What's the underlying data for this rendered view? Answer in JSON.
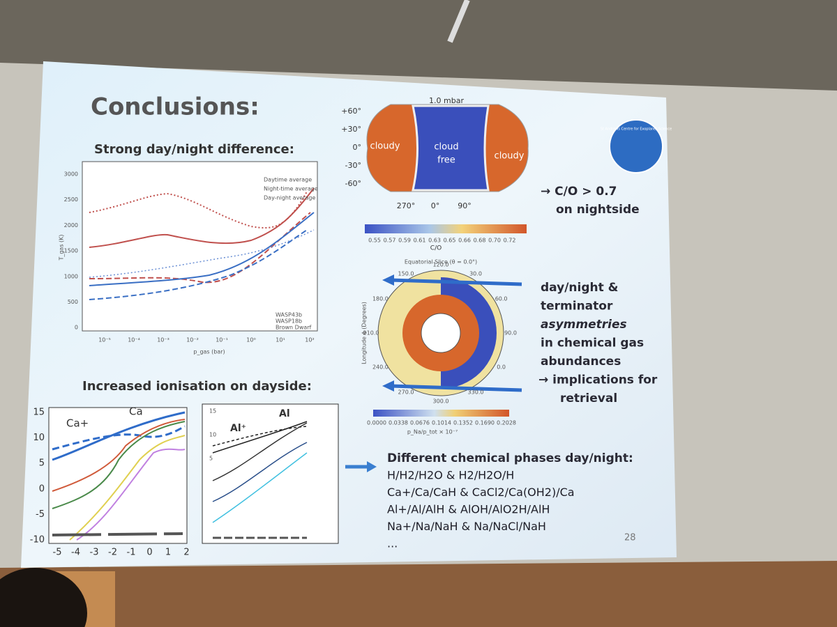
{
  "slide": {
    "title": "Conclusions:",
    "page_number": "28",
    "panel_1": {
      "heading": "Strong day/night difference:",
      "y_label": "T_gas (K)",
      "x_label": "p_gas (bar)",
      "yticks": [
        "3000",
        "2500",
        "2000",
        "1500",
        "1000",
        "500",
        "0"
      ],
      "xticks": [
        "10⁻⁵",
        "10⁻⁴",
        "10⁻³",
        "10⁻²",
        "10⁻¹",
        "10⁰",
        "10¹",
        "10²"
      ],
      "legend_top": [
        "Daytime average",
        "Night-time average",
        "Day-night average"
      ],
      "legend_bottom": [
        "WASP43b",
        "WASP18b",
        "Brown Dwarf"
      ]
    },
    "map": {
      "pressure": "1.0 mbar",
      "lat_labels": [
        "+60°",
        "+30°",
        "0°",
        "-30°",
        "-60°"
      ],
      "lon_labels": [
        "270°",
        "0°",
        "90°"
      ],
      "regions": [
        "cloudy",
        "cloud",
        "free",
        "cloudy"
      ],
      "colorbar_ticks": [
        "0.55",
        "0.57",
        "0.59",
        "0.61",
        "0.63",
        "0.65",
        "0.66",
        "0.68",
        "0.70",
        "0.72"
      ],
      "colorbar_label": "C/O"
    },
    "note_1": [
      "→ C/O > 0.7",
      "on nightside"
    ],
    "slice": {
      "title": "Equatorial Slice (θ = 0.0°)",
      "angle_labels": [
        "30.0",
        "60.0",
        "90.0",
        "0.0",
        "330.0",
        "300.0",
        "270.0",
        "240.0",
        "210.0",
        "180.0",
        "150.0",
        "120.0"
      ],
      "y_label": "Longitude ϕ (Degrees)",
      "colorbar_ticks": [
        "0.0000",
        "0.0338",
        "0.0676",
        "0.1014",
        "0.1352",
        "0.1690",
        "0.2028"
      ],
      "colorbar_label": "p_Na/p_tot × 10⁻⁷"
    },
    "note_2": [
      "day/night &",
      "terminator",
      "asymmetries",
      "in chemical gas",
      "abundances",
      "→ implications for",
      "retrieval"
    ],
    "panel_2": {
      "heading": "Increased ionisation on dayside:",
      "left": {
        "labels": [
          "Ca+",
          "Ca"
        ],
        "yticks": [
          "15",
          "10",
          "5",
          "0",
          "-5",
          "-10"
        ],
        "xticks": [
          "-5",
          "-4",
          "-3",
          "-2",
          "-1",
          "0",
          "1",
          "2"
        ]
      },
      "right": {
        "labels": [
          "Al⁺",
          "Al"
        ],
        "yticks": [
          "15",
          "10",
          "5"
        ]
      }
    },
    "phases": {
      "heading": "Different chemical phases day/night:",
      "lines": [
        "H/H2/H2O    & H2/H2O/H",
        "Ca+/Ca/CaH  & CaCl2/Ca(OH2)/Ca",
        "Al+/Al/AlH    &  AlOH/AlO2H/AlH",
        "Na+/Na/NaH & Na/NaCl/NaH",
        "..."
      ]
    },
    "logo": "St Andrews Centre for Exoplanet Science"
  }
}
